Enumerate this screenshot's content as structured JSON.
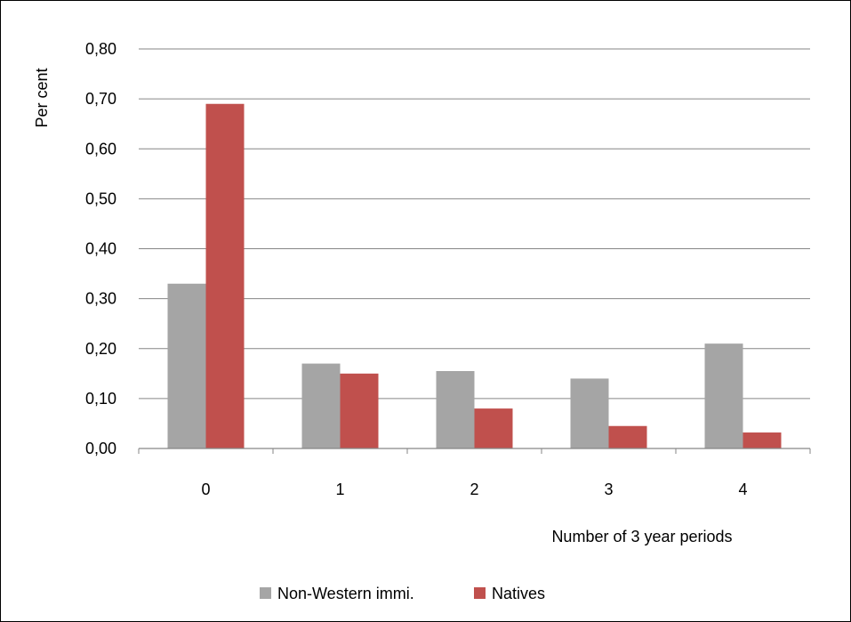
{
  "chart_data": {
    "type": "bar",
    "categories": [
      "0",
      "1",
      "2",
      "3",
      "4"
    ],
    "series": [
      {
        "name": "Non-Western immi.",
        "color": "#a5a5a5",
        "values": [
          0.33,
          0.17,
          0.155,
          0.14,
          0.21
        ]
      },
      {
        "name": "Natives",
        "color": "#c0504d",
        "values": [
          0.69,
          0.15,
          0.08,
          0.045,
          0.032
        ]
      }
    ],
    "title": "",
    "xlabel": "Number of 3 year periods",
    "ylabel": "Per cent",
    "ylim": [
      0,
      0.8
    ],
    "yticks": [
      "0,00",
      "0,10",
      "0,20",
      "0,30",
      "0,40",
      "0,50",
      "0,60",
      "0,70",
      "0,80"
    ],
    "grid": true,
    "legend_position": "bottom"
  }
}
